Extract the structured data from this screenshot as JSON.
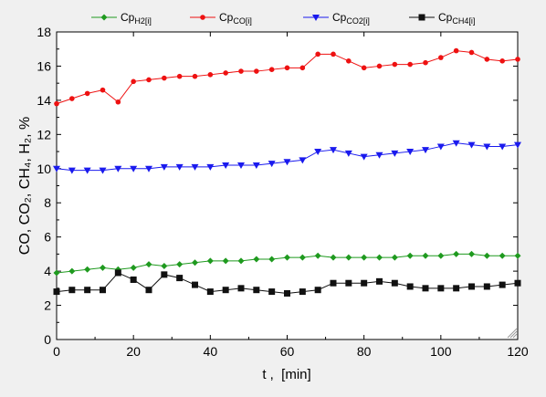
{
  "chart_data": {
    "type": "line",
    "xlabel": "t ,  [min]",
    "ylabel": "CO, CO₂, CH₄, H₂, %",
    "xlim": [
      0,
      120
    ],
    "ylim": [
      0,
      18
    ],
    "xticks": [
      0,
      20,
      40,
      60,
      80,
      100,
      120
    ],
    "yticks": [
      0,
      2,
      4,
      6,
      8,
      10,
      12,
      14,
      16,
      18
    ],
    "grid": false,
    "legend_position": "top",
    "series": [
      {
        "name": "CpH2[i]",
        "name_main": "Cp",
        "name_sub": "H2[i]",
        "color": "#1f9a1f",
        "marker": "diamond",
        "x": [
          0,
          4,
          8,
          12,
          16,
          20,
          24,
          28,
          32,
          36,
          40,
          44,
          48,
          52,
          56,
          60,
          64,
          68,
          72,
          76,
          80,
          84,
          88,
          92,
          96,
          100,
          104,
          108,
          112,
          116,
          120
        ],
        "y": [
          3.9,
          4.0,
          4.1,
          4.2,
          4.1,
          4.2,
          4.4,
          4.3,
          4.4,
          4.5,
          4.6,
          4.6,
          4.6,
          4.7,
          4.7,
          4.8,
          4.8,
          4.9,
          4.8,
          4.8,
          4.8,
          4.8,
          4.8,
          4.9,
          4.9,
          4.9,
          5.0,
          5.0,
          4.9,
          4.9,
          4.9
        ]
      },
      {
        "name": "CpCO[i]",
        "name_main": "Cp",
        "name_sub": "CO[i]",
        "color": "#ee1111",
        "marker": "circle",
        "x": [
          0,
          4,
          8,
          12,
          16,
          20,
          24,
          28,
          32,
          36,
          40,
          44,
          48,
          52,
          56,
          60,
          64,
          68,
          72,
          76,
          80,
          84,
          88,
          92,
          96,
          100,
          104,
          108,
          112,
          116,
          120
        ],
        "y": [
          13.8,
          14.1,
          14.4,
          14.6,
          13.9,
          15.1,
          15.2,
          15.3,
          15.4,
          15.4,
          15.5,
          15.6,
          15.7,
          15.7,
          15.8,
          15.9,
          15.9,
          16.7,
          16.7,
          16.3,
          15.9,
          16.0,
          16.1,
          16.1,
          16.2,
          16.5,
          16.9,
          16.8,
          16.4,
          16.3,
          16.4
        ]
      },
      {
        "name": "CpCO2[i]",
        "name_main": "Cp",
        "name_sub": "CO2[i]",
        "color": "#1a1aee",
        "marker": "triangle-down",
        "x": [
          0,
          4,
          8,
          12,
          16,
          20,
          24,
          28,
          32,
          36,
          40,
          44,
          48,
          52,
          56,
          60,
          64,
          68,
          72,
          76,
          80,
          84,
          88,
          92,
          96,
          100,
          104,
          108,
          112,
          116,
          120
        ],
        "y": [
          10.0,
          9.9,
          9.9,
          9.9,
          10.0,
          10.0,
          10.0,
          10.1,
          10.1,
          10.1,
          10.1,
          10.2,
          10.2,
          10.2,
          10.3,
          10.4,
          10.5,
          11.0,
          11.1,
          10.9,
          10.7,
          10.8,
          10.9,
          11.0,
          11.1,
          11.3,
          11.5,
          11.4,
          11.3,
          11.3,
          11.4
        ]
      },
      {
        "name": "CpCH4[i]",
        "name_main": "Cp",
        "name_sub": "CH4[i]",
        "color": "#111111",
        "marker": "square",
        "x": [
          0,
          4,
          8,
          12,
          16,
          20,
          24,
          28,
          32,
          36,
          40,
          44,
          48,
          52,
          56,
          60,
          64,
          68,
          72,
          76,
          80,
          84,
          88,
          92,
          96,
          100,
          104,
          108,
          112,
          116,
          120
        ],
        "y": [
          2.8,
          2.9,
          2.9,
          2.9,
          3.9,
          3.5,
          2.9,
          3.8,
          3.6,
          3.2,
          2.8,
          2.9,
          3.0,
          2.9,
          2.8,
          2.7,
          2.8,
          2.9,
          3.3,
          3.3,
          3.3,
          3.4,
          3.3,
          3.1,
          3.0,
          3.0,
          3.0,
          3.1,
          3.1,
          3.2,
          3.3
        ]
      }
    ]
  }
}
